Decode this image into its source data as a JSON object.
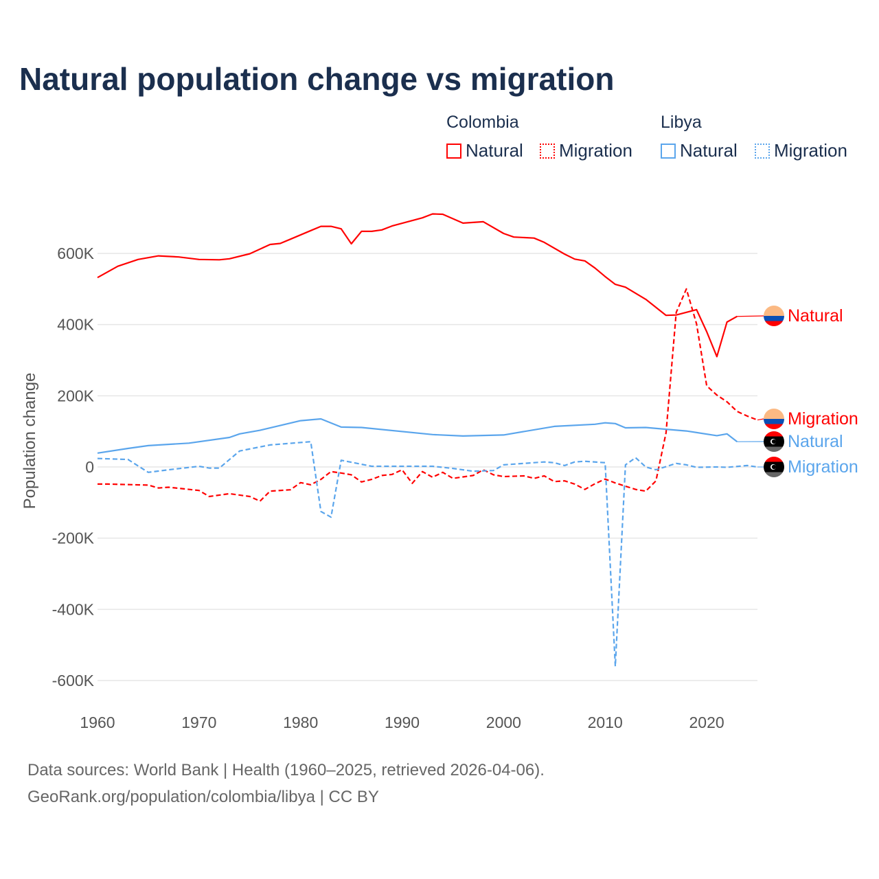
{
  "chart_data": {
    "type": "line",
    "title": "Natural population change vs migration",
    "xlabel": "",
    "ylabel": "Population change",
    "xlim": [
      1960,
      2025
    ],
    "ylim": [
      -600000,
      600000
    ],
    "x_ticks": [
      1960,
      1970,
      1980,
      1990,
      2000,
      2010,
      2020
    ],
    "x_tick_labels": [
      "1960",
      "1970",
      "1980",
      "1990",
      "2000",
      "2010",
      "2020"
    ],
    "y_ticks": [
      600000,
      400000,
      200000,
      0,
      -200000,
      -400000,
      -600000
    ],
    "y_tick_labels": [
      "600K",
      "400K",
      "200K",
      "0",
      "-200K",
      "-400K",
      "-600K"
    ],
    "grid": true,
    "legend": {
      "placement": "top-right",
      "groups": [
        {
          "name": "Colombia",
          "items": [
            "Natural",
            "Migration"
          ]
        },
        {
          "name": "Libya",
          "items": [
            "Natural",
            "Migration"
          ]
        }
      ]
    },
    "series": [
      {
        "name": "Colombia Natural",
        "country": "Colombia",
        "label": "Natural",
        "color": "#ff0000",
        "dash": "solid",
        "points": [
          [
            1960,
            532000
          ],
          [
            1962,
            564000
          ],
          [
            1964,
            583000
          ],
          [
            1966,
            593000
          ],
          [
            1968,
            590000
          ],
          [
            1970,
            583000
          ],
          [
            1972,
            582000
          ],
          [
            1973,
            585000
          ],
          [
            1975,
            599000
          ],
          [
            1977,
            625000
          ],
          [
            1978,
            628000
          ],
          [
            1979,
            640000
          ],
          [
            1981,
            664000
          ],
          [
            1982,
            676000
          ],
          [
            1983,
            676000
          ],
          [
            1984,
            669000
          ],
          [
            1985,
            627000
          ],
          [
            1986,
            662000
          ],
          [
            1987,
            662000
          ],
          [
            1988,
            666000
          ],
          [
            1989,
            677000
          ],
          [
            1992,
            700000
          ],
          [
            1993,
            711000
          ],
          [
            1994,
            710000
          ],
          [
            1996,
            685000
          ],
          [
            1998,
            689000
          ],
          [
            2000,
            656000
          ],
          [
            2001,
            646000
          ],
          [
            2003,
            643000
          ],
          [
            2004,
            631000
          ],
          [
            2006,
            598000
          ],
          [
            2007,
            584000
          ],
          [
            2008,
            579000
          ],
          [
            2009,
            559000
          ],
          [
            2010,
            535000
          ],
          [
            2011,
            513000
          ],
          [
            2012,
            505000
          ],
          [
            2014,
            471000
          ],
          [
            2016,
            426000
          ],
          [
            2017,
            427000
          ],
          [
            2019,
            442000
          ],
          [
            2020,
            380000
          ],
          [
            2021,
            310000
          ],
          [
            2022,
            407000
          ],
          [
            2023,
            423000
          ]
        ]
      },
      {
        "name": "Colombia Migration",
        "country": "Colombia",
        "label": "Migration",
        "color": "#ff0000",
        "dash": "dashed",
        "points": [
          [
            1960,
            -48000
          ],
          [
            1961,
            -48000
          ],
          [
            1965,
            -51000
          ],
          [
            1966,
            -59000
          ],
          [
            1967,
            -57000
          ],
          [
            1970,
            -66000
          ],
          [
            1971,
            -83000
          ],
          [
            1973,
            -75000
          ],
          [
            1975,
            -83000
          ],
          [
            1976,
            -96000
          ],
          [
            1977,
            -68000
          ],
          [
            1979,
            -64000
          ],
          [
            1980,
            -44000
          ],
          [
            1981,
            -50000
          ],
          [
            1982,
            -35000
          ],
          [
            1983,
            -13000
          ],
          [
            1984,
            -17000
          ],
          [
            1985,
            -22000
          ],
          [
            1986,
            -42000
          ],
          [
            1987,
            -35000
          ],
          [
            1988,
            -24000
          ],
          [
            1989,
            -21000
          ],
          [
            1990,
            -8000
          ],
          [
            1991,
            -46000
          ],
          [
            1992,
            -13000
          ],
          [
            1993,
            -29000
          ],
          [
            1994,
            -15000
          ],
          [
            1995,
            -32000
          ],
          [
            1997,
            -24000
          ],
          [
            1998,
            -8000
          ],
          [
            1999,
            -22000
          ],
          [
            2000,
            -27000
          ],
          [
            2002,
            -25000
          ],
          [
            2003,
            -32000
          ],
          [
            2004,
            -25000
          ],
          [
            2005,
            -41000
          ],
          [
            2006,
            -39000
          ],
          [
            2007,
            -48000
          ],
          [
            2008,
            -63000
          ],
          [
            2009,
            -47000
          ],
          [
            2010,
            -34000
          ],
          [
            2011,
            -45000
          ],
          [
            2012,
            -54000
          ],
          [
            2013,
            -63000
          ],
          [
            2014,
            -68000
          ],
          [
            2015,
            -39000
          ],
          [
            2016,
            96000
          ],
          [
            2017,
            434000
          ],
          [
            2018,
            500000
          ],
          [
            2019,
            402000
          ],
          [
            2020,
            228000
          ],
          [
            2021,
            202000
          ],
          [
            2022,
            183000
          ],
          [
            2023,
            156000
          ],
          [
            2024,
            143000
          ],
          [
            2025,
            132000
          ]
        ]
      },
      {
        "name": "Libya Natural",
        "country": "Libya",
        "label": "Natural",
        "color": "#5aa5ec",
        "dash": "solid",
        "points": [
          [
            1960,
            39000
          ],
          [
            1963,
            52000
          ],
          [
            1965,
            60000
          ],
          [
            1969,
            67000
          ],
          [
            1973,
            83000
          ],
          [
            1974,
            93000
          ],
          [
            1976,
            103000
          ],
          [
            1980,
            130000
          ],
          [
            1982,
            135000
          ],
          [
            1984,
            112000
          ],
          [
            1986,
            111000
          ],
          [
            1993,
            91000
          ],
          [
            1996,
            87000
          ],
          [
            2000,
            90000
          ],
          [
            2005,
            114000
          ],
          [
            2009,
            120000
          ],
          [
            2010,
            124000
          ],
          [
            2011,
            122000
          ],
          [
            2012,
            110000
          ],
          [
            2014,
            111000
          ],
          [
            2016,
            106000
          ],
          [
            2018,
            101000
          ],
          [
            2021,
            88000
          ],
          [
            2022,
            93000
          ],
          [
            2023,
            71000
          ]
        ]
      },
      {
        "name": "Libya Migration",
        "country": "Libya",
        "label": "Migration",
        "color": "#5aa5ec",
        "dash": "dashed",
        "points": [
          [
            1960,
            24000
          ],
          [
            1963,
            21000
          ],
          [
            1965,
            -15000
          ],
          [
            1967,
            -8000
          ],
          [
            1970,
            2000
          ],
          [
            1971,
            -3000
          ],
          [
            1972,
            -3000
          ],
          [
            1974,
            45000
          ],
          [
            1977,
            62000
          ],
          [
            1981,
            71000
          ],
          [
            1982,
            -125000
          ],
          [
            1983,
            -141000
          ],
          [
            1984,
            19000
          ],
          [
            1987,
            2000
          ],
          [
            1993,
            2000
          ],
          [
            1995,
            -4000
          ],
          [
            1997,
            -12000
          ],
          [
            1999,
            -10000
          ],
          [
            2000,
            6000
          ],
          [
            2004,
            14000
          ],
          [
            2005,
            12000
          ],
          [
            2006,
            4000
          ],
          [
            2007,
            14000
          ],
          [
            2008,
            16000
          ],
          [
            2010,
            12000
          ],
          [
            2011,
            -560000
          ],
          [
            2012,
            6000
          ],
          [
            2013,
            26000
          ],
          [
            2014,
            0
          ],
          [
            2015,
            -8000
          ],
          [
            2017,
            10000
          ],
          [
            2018,
            6000
          ],
          [
            2019,
            -1000
          ],
          [
            2021,
            0
          ],
          [
            2022,
            -1000
          ],
          [
            2024,
            4000
          ],
          [
            2025,
            0
          ]
        ]
      }
    ]
  },
  "legend_headers": {
    "colombia": "Colombia",
    "libya": "Libya"
  },
  "legend_labels": {
    "colombia_natural": "Natural",
    "colombia_migration": "Migration",
    "libya_natural": "Natural",
    "libya_migration": "Migration"
  },
  "end_labels": {
    "colombia_natural": "Natural",
    "colombia_migration": "Migration",
    "libya_natural": "Natural",
    "libya_migration": "Migration"
  },
  "footer": {
    "line1": "Data sources: World Bank | Health (1960–2025, retrieved 2026-04-06).",
    "line2": "GeoRank.org/population/colombia/libya | CC BY"
  },
  "colors": {
    "colombia": "#ff0000",
    "libya": "#5aa5ec",
    "title": "#1b2f4e"
  }
}
